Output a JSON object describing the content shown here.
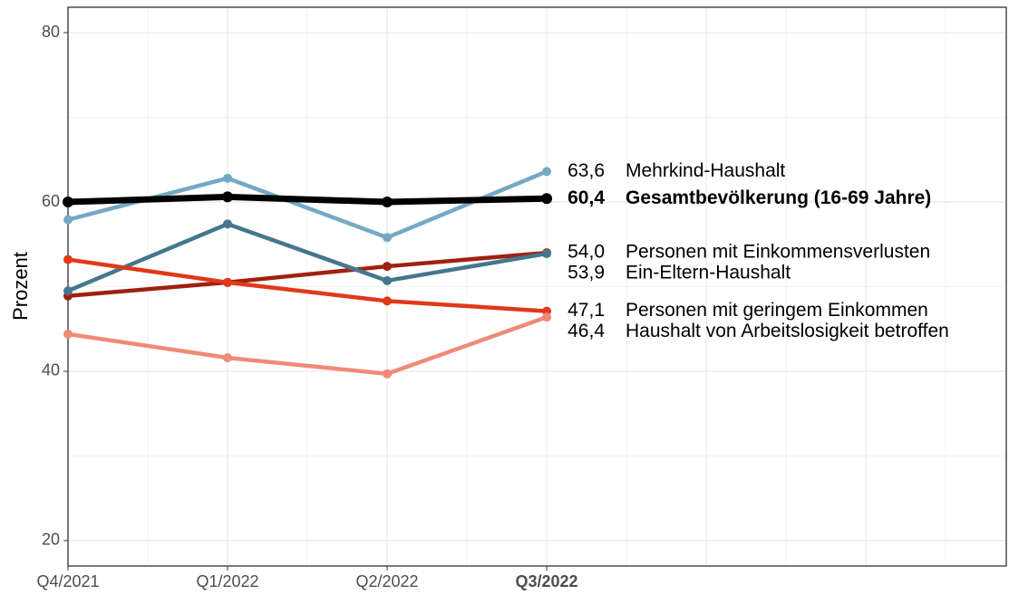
{
  "chart_data": {
    "type": "line",
    "y_label": "Prozent",
    "categories": [
      "Q4/2021",
      "Q1/2022",
      "Q2/2022",
      "Q3/2022"
    ],
    "xlim": [
      0,
      5.88
    ],
    "ylim": [
      17,
      83
    ],
    "yticks": [
      20,
      40,
      60,
      80
    ],
    "grid": true,
    "series": [
      {
        "name": "Mehrkind-Haushalt",
        "color": "#74a9c4",
        "values": [
          57.9,
          62.8,
          55.8,
          63.6
        ],
        "value_labels": [
          null,
          null,
          null,
          "63,6"
        ],
        "emphasis": false
      },
      {
        "name": "Gesamtbevölkerung (16-69 Jahre)",
        "color": "#000000",
        "values": [
          60.0,
          60.6,
          60.0,
          60.4
        ],
        "value_labels": [
          null,
          null,
          null,
          "60,4"
        ],
        "emphasis": true
      },
      {
        "name": "Personen mit Einkommensverlusten",
        "color": "#a0200f",
        "values": [
          48.9,
          50.5,
          52.4,
          54.0
        ],
        "value_labels": [
          null,
          null,
          null,
          "54,0"
        ],
        "emphasis": false
      },
      {
        "name": "Ein-Eltern-Haushalt",
        "color": "#44778f",
        "values": [
          49.5,
          57.4,
          50.7,
          53.9
        ],
        "value_labels": [
          null,
          null,
          null,
          "53,9"
        ],
        "emphasis": false
      },
      {
        "name": "Personen mit geringem Einkommen",
        "color": "#e0391a",
        "values": [
          53.2,
          50.5,
          48.3,
          47.1
        ],
        "value_labels": [
          null,
          null,
          null,
          "47,1"
        ],
        "emphasis": false
      },
      {
        "name": "Haushalt von Arbeitslosigkeit betroffen",
        "color": "#f08a78",
        "values": [
          44.4,
          41.6,
          39.7,
          46.4
        ],
        "value_labels": [
          null,
          null,
          null,
          "46,4"
        ],
        "emphasis": false
      }
    ]
  }
}
